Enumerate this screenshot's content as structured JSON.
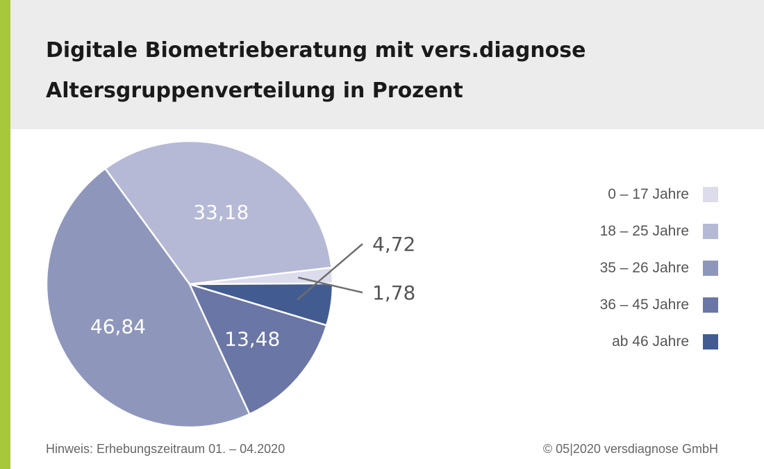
{
  "header": {
    "title_line1": "Digitale Biometrieberatung mit vers.diagnose",
    "title_line2": "Altersgruppenverteilung in Prozent"
  },
  "footer": {
    "note": "Hinweis: Erhebungszeitraum 01. – 04.2020",
    "copyright": "© 05|2020 versdiagnose GmbH"
  },
  "colors": {
    "accent": "#a6c83a",
    "header_bg": "#ececec"
  },
  "chart_data": {
    "type": "pie",
    "unit": "Prozent",
    "legend_position": "right",
    "slices": [
      {
        "label": "0 – 17 Jahre",
        "value": 1.78,
        "display": "1,78",
        "color": "#dcdcec"
      },
      {
        "label": "18 – 25 Jahre",
        "value": 33.18,
        "display": "33,18",
        "color": "#b5b9d5"
      },
      {
        "label": "35 – 26 Jahre",
        "value": 46.84,
        "display": "46,84",
        "color": "#8e97bb"
      },
      {
        "label": "36 – 45 Jahre",
        "value": 13.48,
        "display": "13,48",
        "color": "#6a76a5"
      },
      {
        "label": "ab 46 Jahre",
        "value": 4.72,
        "display": "4,72",
        "color": "#425c92"
      }
    ]
  }
}
